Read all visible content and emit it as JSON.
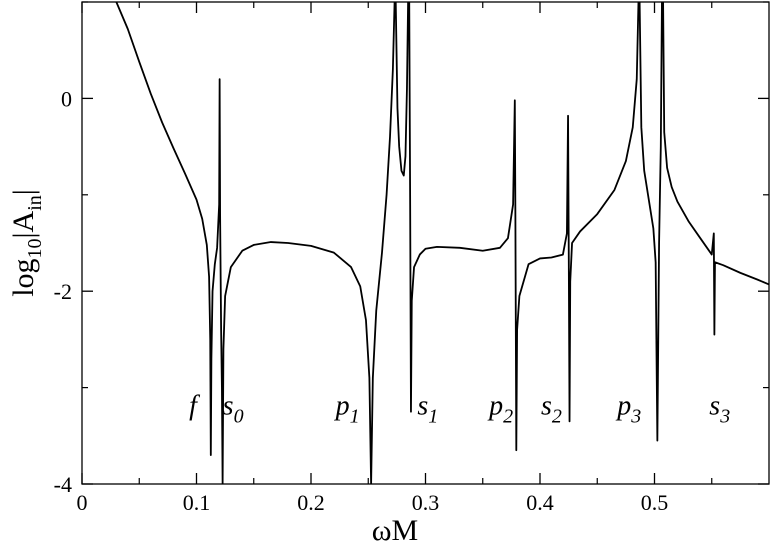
{
  "chart_data": {
    "type": "line",
    "title": "",
    "xlabel": "ωM",
    "ylabel": "log10|A_in|",
    "ylabel_parts": {
      "main": "log",
      "sub1": "10",
      "mid": "|A",
      "sub2": "in",
      "end": "|"
    },
    "xlim": [
      0,
      0.6
    ],
    "ylim": [
      -4,
      1
    ],
    "xticks": [
      0,
      0.1,
      0.2,
      0.3,
      0.4,
      0.5
    ],
    "xtick_labels": [
      "0",
      "0.1",
      "0.2",
      "0.3",
      "0.4",
      "0.5"
    ],
    "yticks": [
      -4,
      -2,
      0
    ],
    "ytick_labels": [
      "-4",
      "-2",
      "0"
    ],
    "grid": false,
    "legend": "none",
    "line_color": "#000000",
    "series": [
      {
        "points": [
          [
            0.03,
            1.0
          ],
          [
            0.04,
            0.72
          ],
          [
            0.05,
            0.38
          ],
          [
            0.06,
            0.05
          ],
          [
            0.07,
            -0.25
          ],
          [
            0.08,
            -0.52
          ],
          [
            0.09,
            -0.78
          ],
          [
            0.1,
            -1.05
          ],
          [
            0.105,
            -1.25
          ],
          [
            0.109,
            -1.52
          ],
          [
            0.111,
            -1.85
          ],
          [
            0.112,
            -2.5
          ],
          [
            0.1125,
            -3.7
          ],
          [
            0.113,
            -2.7
          ],
          [
            0.114,
            -2.0
          ],
          [
            0.116,
            -1.72
          ],
          [
            0.118,
            -1.55
          ],
          [
            0.1198,
            -1.1
          ],
          [
            0.1202,
            0.2
          ],
          [
            0.1206,
            -1.2
          ],
          [
            0.1215,
            -2.4
          ],
          [
            0.1222,
            -3.0
          ],
          [
            0.1228,
            -4.0
          ],
          [
            0.1235,
            -2.6
          ],
          [
            0.125,
            -2.05
          ],
          [
            0.13,
            -1.75
          ],
          [
            0.14,
            -1.58
          ],
          [
            0.15,
            -1.52
          ],
          [
            0.165,
            -1.49
          ],
          [
            0.18,
            -1.5
          ],
          [
            0.2,
            -1.53
          ],
          [
            0.22,
            -1.6
          ],
          [
            0.235,
            -1.75
          ],
          [
            0.243,
            -1.95
          ],
          [
            0.248,
            -2.3
          ],
          [
            0.251,
            -2.9
          ],
          [
            0.2525,
            -4.0
          ],
          [
            0.254,
            -2.9
          ],
          [
            0.257,
            -2.2
          ],
          [
            0.262,
            -1.6
          ],
          [
            0.266,
            -1.0
          ],
          [
            0.269,
            -0.4
          ],
          [
            0.2715,
            0.3
          ],
          [
            0.273,
            1.0
          ],
          [
            0.274,
            1.0
          ],
          [
            0.2755,
            -0.1
          ],
          [
            0.277,
            -0.5
          ],
          [
            0.279,
            -0.75
          ],
          [
            0.281,
            -0.8
          ],
          [
            0.2825,
            -0.6
          ],
          [
            0.2838,
            0.1
          ],
          [
            0.2848,
            1.0
          ],
          [
            0.2858,
            1.0
          ],
          [
            0.2866,
            -1.1
          ],
          [
            0.2873,
            -3.25
          ],
          [
            0.288,
            -2.1
          ],
          [
            0.29,
            -1.75
          ],
          [
            0.295,
            -1.62
          ],
          [
            0.3,
            -1.56
          ],
          [
            0.31,
            -1.54
          ],
          [
            0.33,
            -1.55
          ],
          [
            0.35,
            -1.58
          ],
          [
            0.365,
            -1.55
          ],
          [
            0.372,
            -1.45
          ],
          [
            0.3765,
            -1.1
          ],
          [
            0.378,
            -0.02
          ],
          [
            0.3785,
            -1.2
          ],
          [
            0.3793,
            -3.65
          ],
          [
            0.38,
            -2.4
          ],
          [
            0.382,
            -2.05
          ],
          [
            0.39,
            -1.72
          ],
          [
            0.4,
            -1.66
          ],
          [
            0.41,
            -1.65
          ],
          [
            0.42,
            -1.62
          ],
          [
            0.4235,
            -1.4
          ],
          [
            0.4245,
            -0.18
          ],
          [
            0.4252,
            -1.8
          ],
          [
            0.4258,
            -3.35
          ],
          [
            0.4264,
            -1.9
          ],
          [
            0.428,
            -1.5
          ],
          [
            0.435,
            -1.38
          ],
          [
            0.45,
            -1.2
          ],
          [
            0.465,
            -0.95
          ],
          [
            0.475,
            -0.65
          ],
          [
            0.481,
            -0.3
          ],
          [
            0.4845,
            0.2
          ],
          [
            0.486,
            1.0
          ],
          [
            0.487,
            1.0
          ],
          [
            0.4885,
            -0.3
          ],
          [
            0.491,
            -0.75
          ],
          [
            0.495,
            -1.05
          ],
          [
            0.499,
            -1.35
          ],
          [
            0.501,
            -1.7
          ],
          [
            0.5025,
            -3.55
          ],
          [
            0.504,
            -1.5
          ],
          [
            0.5055,
            -0.5
          ],
          [
            0.5065,
            1.0
          ],
          [
            0.5075,
            1.0
          ],
          [
            0.5085,
            -0.35
          ],
          [
            0.511,
            -0.72
          ],
          [
            0.515,
            -0.92
          ],
          [
            0.52,
            -1.07
          ],
          [
            0.53,
            -1.28
          ],
          [
            0.54,
            -1.45
          ],
          [
            0.55,
            -1.62
          ],
          [
            0.5518,
            -1.4
          ],
          [
            0.5523,
            -2.45
          ],
          [
            0.5528,
            -1.7
          ],
          [
            0.56,
            -1.73
          ],
          [
            0.575,
            -1.81
          ],
          [
            0.59,
            -1.88
          ],
          [
            0.6,
            -1.93
          ]
        ]
      }
    ],
    "annotations": [
      {
        "base": "f",
        "sub": "",
        "x": 0.097,
        "y": -3.28
      },
      {
        "base": "s",
        "sub": "0",
        "x": 0.132,
        "y": -3.28
      },
      {
        "base": "p",
        "sub": "1",
        "x": 0.232,
        "y": -3.28
      },
      {
        "base": "s",
        "sub": "1",
        "x": 0.302,
        "y": -3.28
      },
      {
        "base": "p",
        "sub": "2",
        "x": 0.366,
        "y": -3.28
      },
      {
        "base": "s",
        "sub": "2",
        "x": 0.41,
        "y": -3.28
      },
      {
        "base": "p",
        "sub": "3",
        "x": 0.478,
        "y": -3.28
      },
      {
        "base": "s",
        "sub": "3",
        "x": 0.557,
        "y": -3.28
      }
    ]
  }
}
